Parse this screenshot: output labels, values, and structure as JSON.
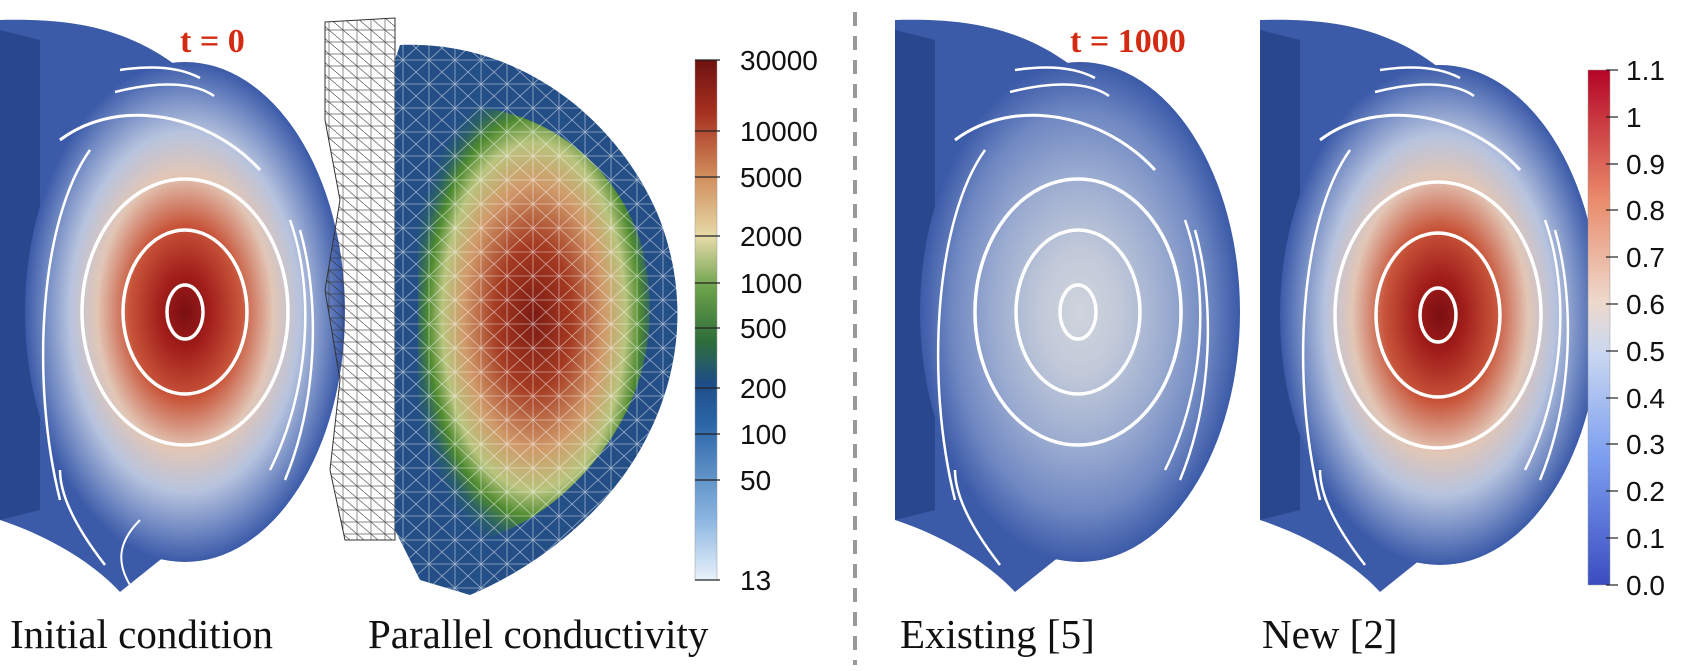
{
  "panels": [
    {
      "caption": "Initial condition",
      "time_label": "t = 0",
      "level": 1.0
    },
    {
      "caption": "Parallel conductivity",
      "time_label": ""
    },
    {
      "caption": "Existing [5]",
      "time_label": "t = 1000",
      "level": 0.55
    },
    {
      "caption": "New [2]",
      "time_label": "",
      "level": 1.0
    }
  ],
  "conductivity_colorbar": {
    "scale": "log",
    "range": [
      13,
      30000
    ],
    "tick_labels": [
      "30000",
      "10000",
      "5000",
      "2000",
      "1000",
      "500",
      "200",
      "100",
      "50",
      "13"
    ],
    "tick_values": [
      30000,
      10000,
      5000,
      2000,
      1000,
      500,
      200,
      100,
      50,
      13
    ]
  },
  "value_colorbar": {
    "scale": "linear",
    "range": [
      0.0,
      1.1
    ],
    "tick_labels": [
      "1.1",
      "1",
      "0.9",
      "0.8",
      "0.7",
      "0.6",
      "0.5",
      "0.4",
      "0.3",
      "0.2",
      "0.1",
      "0.0"
    ],
    "tick_values": [
      1.1,
      1.0,
      0.9,
      0.8,
      0.7,
      0.6,
      0.5,
      0.4,
      0.3,
      0.2,
      0.1,
      0.0
    ]
  },
  "colors": {
    "plasma_blue": "#3b5aa8",
    "plasma_dark_blue": "#1e3a7a",
    "plasma_red": "#8b1a14",
    "title_red": "#d42a12",
    "divider": "#999999"
  }
}
